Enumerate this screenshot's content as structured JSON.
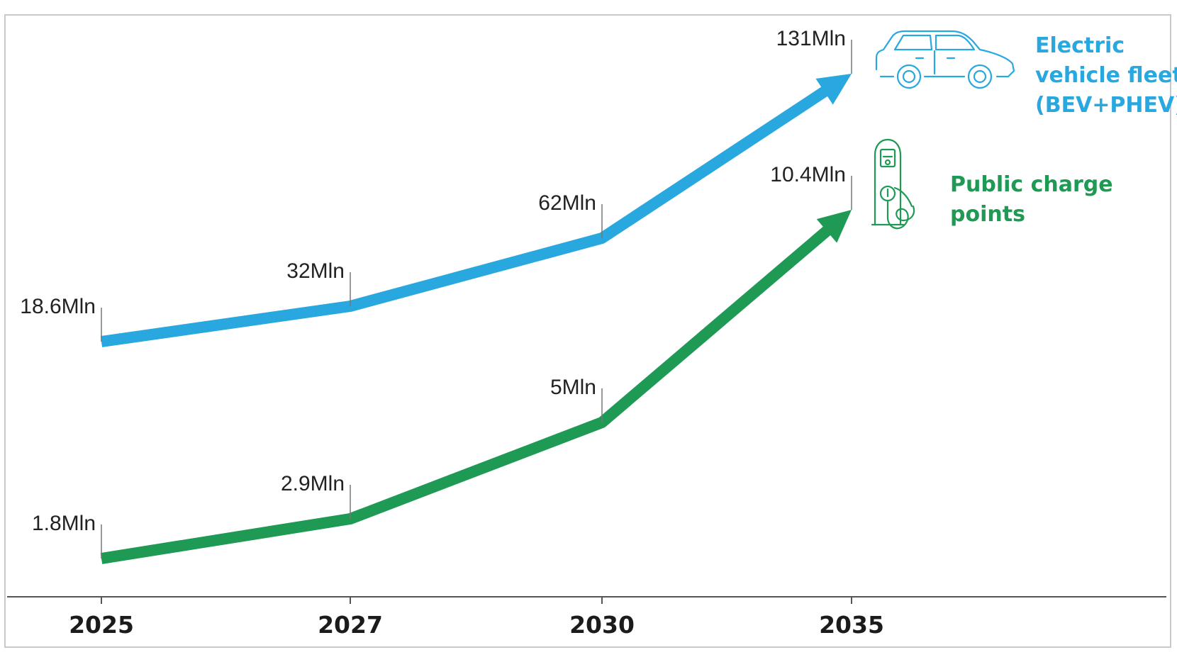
{
  "chart_data": {
    "type": "line",
    "x": [
      "2025",
      "2027",
      "2030",
      "2035"
    ],
    "series": [
      {
        "name": "Electric vehicle fleet (BEV+PHEV)",
        "name_lines": [
          "Electric",
          "vehicle fleet",
          "(BEV+PHEV)"
        ],
        "values": [
          18.6,
          32,
          62,
          131
        ],
        "labels": [
          "18.6Mln",
          "32Mln",
          "62Mln",
          "131Mln"
        ],
        "color": "#29a8e0",
        "icon": "car-icon"
      },
      {
        "name": "Public charge points",
        "name_lines": [
          "Public charge",
          "points"
        ],
        "values": [
          1.8,
          2.9,
          5,
          10.4
        ],
        "labels": [
          "1.8Mln",
          "2.9Mln",
          "5Mln",
          "10.4Mln"
        ],
        "color": "#1f9a55",
        "icon": "charging-station-icon"
      }
    ],
    "grid": false,
    "legend": "right, next to line ends"
  }
}
